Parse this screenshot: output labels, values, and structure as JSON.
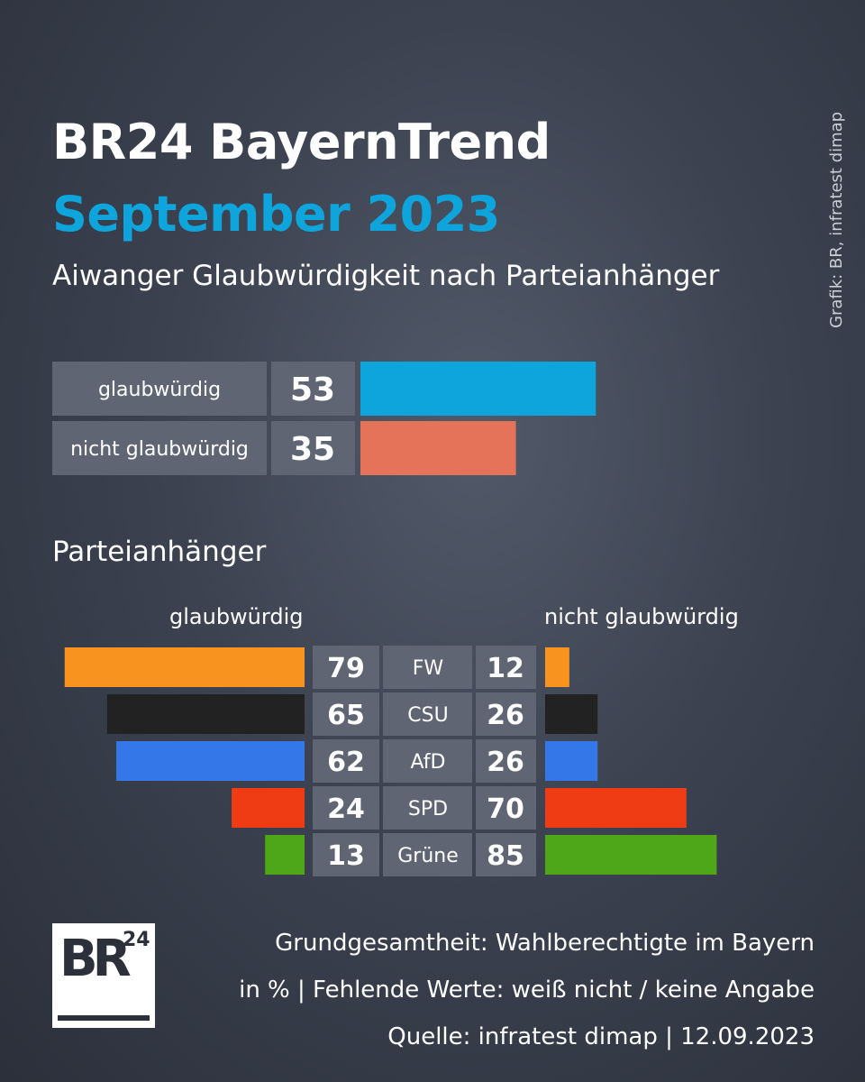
{
  "header": {
    "title": "BR24 BayernTrend",
    "date": "September 2023",
    "subtitle": "Aiwanger Glaubwürdigkeit nach Parteianhänger",
    "credit": "Grafik: BR, infratest dimap"
  },
  "footer": {
    "line1": "Grundgesamtheit: Wahlberechtigte im Bayern",
    "line2": "in % | Fehlende Werte: weiß nicht / keine Angabe",
    "line3": "Quelle: infratest dimap | 12.09.2023"
  },
  "logo": {
    "text": "BR",
    "superscript": "24"
  },
  "colors": {
    "background": "#3c4250",
    "title_blue": "#0ea5dd",
    "label_box": "#5f6572",
    "credible": "#0ea5dd",
    "not_credible": "#e5735a",
    "FW": "#f7931e",
    "CSU": "#222222",
    "AfD": "#3477e8",
    "SPD": "#f03c15",
    "Grüne": "#4ea619"
  },
  "chart_data": [
    {
      "type": "bar",
      "orientation": "horizontal",
      "categories": [
        "glaubwürdig",
        "nicht glaubwürdig"
      ],
      "values": [
        53,
        35
      ],
      "unit": "%"
    },
    {
      "type": "bar",
      "orientation": "horizontal-diverging",
      "title": "Parteianhänger",
      "categories": [
        "FW",
        "CSU",
        "AfD",
        "SPD",
        "Grüne"
      ],
      "series": [
        {
          "name": "glaubwürdig",
          "values": [
            79,
            65,
            62,
            24,
            13
          ]
        },
        {
          "name": "nicht glaubwürdig",
          "values": [
            12,
            26,
            26,
            70,
            85
          ]
        }
      ],
      "unit": "%"
    }
  ]
}
